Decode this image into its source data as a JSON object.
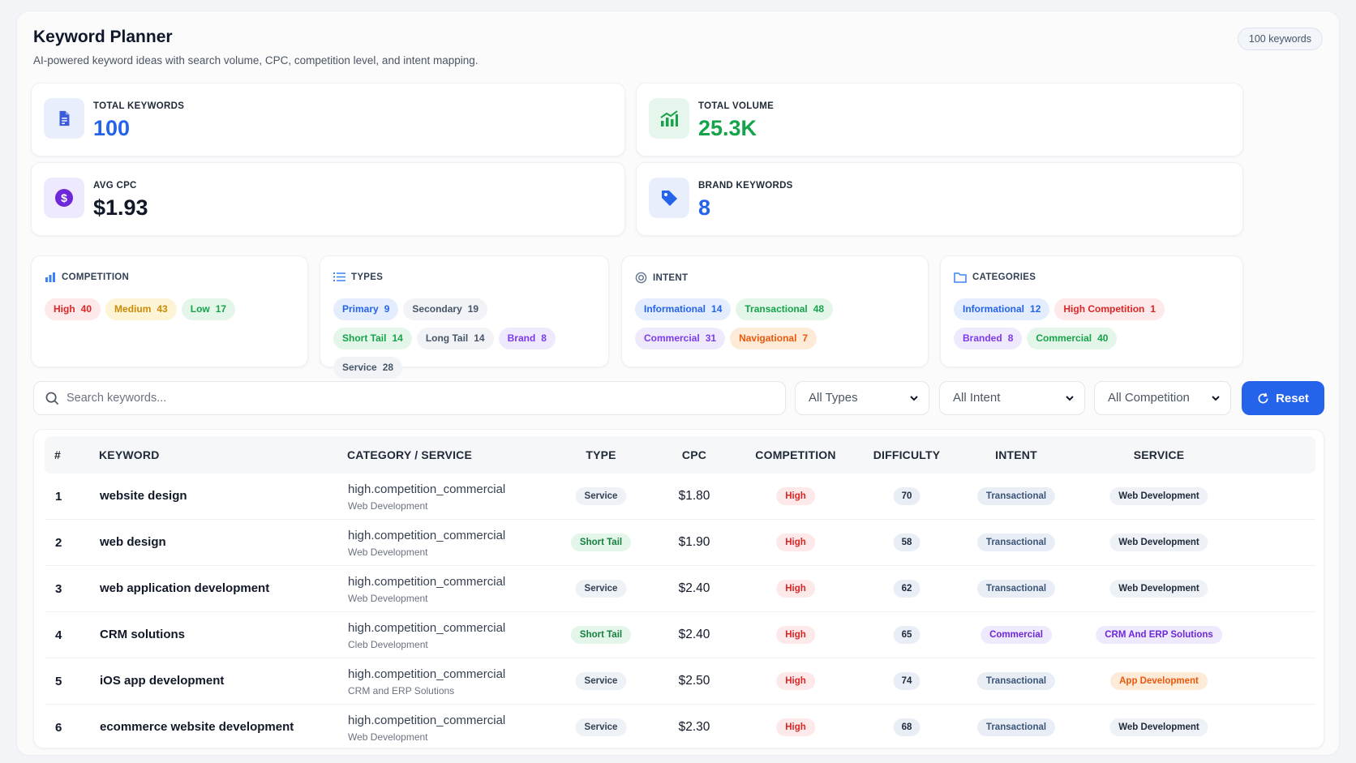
{
  "header": {
    "title": "Keyword Planner",
    "subtitle": "AI-powered keyword ideas with search volume, CPC, competition level, and intent mapping.",
    "count_badge": "100 keywords"
  },
  "stats": {
    "total_keywords": {
      "label": "TOTAL KEYWORDS",
      "value": "100",
      "icon": "document-icon",
      "color": "#2563eb"
    },
    "total_volume": {
      "label": "TOTAL VOLUME",
      "value": "25.3K",
      "icon": "trending-chart-icon",
      "color": "#16a34a"
    },
    "avg_cpc": {
      "label": "AVG CPC",
      "value": "$1.93",
      "icon": "dollar-icon",
      "color": "#111827"
    },
    "brand_keywords": {
      "label": "BRAND KEYWORDS",
      "value": "8",
      "icon": "tag-icon",
      "color": "#2563eb"
    }
  },
  "summary": {
    "competition": {
      "title": "COMPETITION",
      "items": [
        {
          "label": "High",
          "count": "40"
        },
        {
          "label": "Medium",
          "count": "43"
        },
        {
          "label": "Low",
          "count": "17"
        }
      ]
    },
    "types": {
      "title": "TYPES",
      "items": [
        {
          "label": "Primary",
          "count": "9"
        },
        {
          "label": "Secondary",
          "count": "19"
        },
        {
          "label": "Short Tail",
          "count": "14"
        },
        {
          "label": "Long Tail",
          "count": "14"
        },
        {
          "label": "Brand",
          "count": "8"
        },
        {
          "label": "Service",
          "count": "28"
        }
      ]
    },
    "intent": {
      "title": "INTENT",
      "items": [
        {
          "label": "Informational",
          "count": "14"
        },
        {
          "label": "Transactional",
          "count": "48"
        },
        {
          "label": "Commercial",
          "count": "31"
        },
        {
          "label": "Navigational",
          "count": "7"
        }
      ]
    },
    "categories": {
      "title": "CATEGORIES",
      "items": [
        {
          "label": "Informational",
          "count": "12"
        },
        {
          "label": "High Competition",
          "count": "1"
        },
        {
          "label": "Branded",
          "count": "8"
        },
        {
          "label": "Commercial",
          "count": "40"
        }
      ]
    }
  },
  "filters": {
    "search_placeholder": "Search keywords...",
    "type": "All Types",
    "intent": "All Intent",
    "competition": "All Competition",
    "reset_label": "Reset"
  },
  "table": {
    "headers": [
      "#",
      "KEYWORD",
      "CATEGORY / SERVICE",
      "TYPE",
      "CPC",
      "COMPETITION",
      "DIFFICULTY",
      "INTENT",
      "SERVICE"
    ],
    "rows": [
      {
        "num": "1",
        "keyword": "website design",
        "category": "high.competition_commercial",
        "service_sub": "Web Development",
        "type": "Service",
        "cpc": "$1.80",
        "competition": "High",
        "difficulty": "70",
        "intent": "Transactional",
        "service": "Web Development"
      },
      {
        "num": "2",
        "keyword": "web design",
        "category": "high.competition_commercial",
        "service_sub": "Web Development",
        "type": "Short Tail",
        "cpc": "$1.90",
        "competition": "High",
        "difficulty": "58",
        "intent": "Transactional",
        "service": "Web Development"
      },
      {
        "num": "3",
        "keyword": "web application development",
        "category": "high.competition_commercial",
        "service_sub": "Web Development",
        "type": "Service",
        "cpc": "$2.40",
        "competition": "High",
        "difficulty": "62",
        "intent": "Transactional",
        "service": "Web Development"
      },
      {
        "num": "4",
        "keyword": "CRM solutions",
        "category": "high.competition_commercial",
        "service_sub": "Cleb Development",
        "type": "Short Tail",
        "cpc": "$2.40",
        "competition": "High",
        "difficulty": "65",
        "intent": "Commercial",
        "service": "CRM And ERP Solutions"
      },
      {
        "num": "5",
        "keyword": "iOS app development",
        "category": "high.competition_commercial",
        "service_sub": "CRM and ERP Solutions",
        "type": "Service",
        "cpc": "$2.50",
        "competition": "High",
        "difficulty": "74",
        "intent": "Transactional",
        "service": "App Development"
      },
      {
        "num": "6",
        "keyword": "ecommerce website development",
        "category": "high.competition_commercial",
        "service_sub": "Web Development",
        "type": "Service",
        "cpc": "$2.30",
        "competition": "High",
        "difficulty": "68",
        "intent": "Transactional",
        "service": "Web Development"
      }
    ]
  },
  "colors": {
    "accent": "#2563eb",
    "high": "#dc2626",
    "medium": "#ca8a04",
    "low": "#16a34a"
  }
}
